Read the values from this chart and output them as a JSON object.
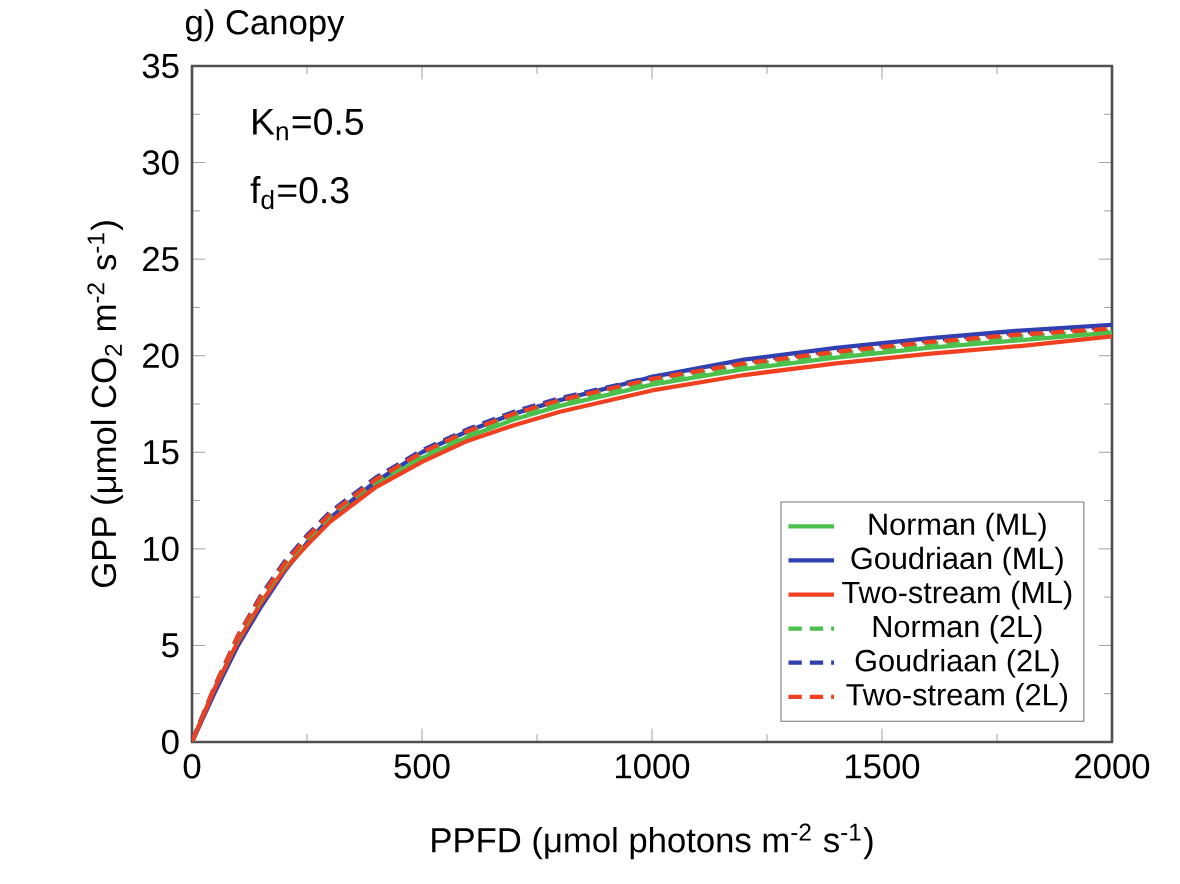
{
  "chart_data": {
    "type": "line",
    "title": "g) Canopy",
    "xlabel": "PPFD (μmol photons m$^{-2}$ s$^{-1}$)",
    "ylabel": "GPP (μmol CO$_{2}$ m$^{-2}$ s$^{-1}$)",
    "annotations": [
      "K$_{n}$=0.5",
      "f$_{d}$=0.3"
    ],
    "x": [
      0,
      50,
      100,
      150,
      200,
      250,
      300,
      400,
      500,
      600,
      700,
      800,
      1000,
      1200,
      1400,
      1600,
      1800,
      2000
    ],
    "series": [
      {
        "name": "Norman (ML)",
        "color": "#4cc04c",
        "line_style": "solid",
        "values": [
          0,
          2.8,
          5.2,
          7.2,
          8.9,
          10.3,
          11.5,
          13.3,
          14.7,
          15.8,
          16.7,
          17.4,
          18.5,
          19.3,
          19.9,
          20.4,
          20.8,
          21.2
        ]
      },
      {
        "name": "Goudriaan (ML)",
        "color": "#3040b0",
        "line_style": "solid",
        "values": [
          0,
          2.6,
          5.0,
          7.0,
          8.8,
          10.3,
          11.6,
          13.5,
          15.0,
          16.1,
          17.0,
          17.7,
          18.9,
          19.8,
          20.4,
          20.9,
          21.3,
          21.6
        ]
      },
      {
        "name": "Two-stream (ML)",
        "color": "#f04020",
        "line_style": "solid",
        "values": [
          0,
          2.8,
          5.2,
          7.2,
          8.9,
          10.2,
          11.4,
          13.2,
          14.5,
          15.6,
          16.4,
          17.1,
          18.2,
          19.0,
          19.6,
          20.1,
          20.5,
          21.0
        ]
      },
      {
        "name": "Norman (2L)",
        "color": "#4cc04c",
        "line_style": "dashed",
        "values": [
          0,
          2.9,
          5.4,
          7.4,
          9.1,
          10.5,
          11.7,
          13.5,
          14.9,
          16.0,
          16.9,
          17.6,
          18.7,
          19.5,
          20.1,
          20.6,
          21.0,
          21.3
        ]
      },
      {
        "name": "Goudriaan (2L)",
        "color": "#3040b0",
        "line_style": "dashed",
        "values": [
          0,
          2.9,
          5.5,
          7.6,
          9.3,
          10.7,
          11.9,
          13.7,
          15.1,
          16.2,
          17.1,
          17.8,
          18.9,
          19.7,
          20.3,
          20.8,
          21.2,
          21.5
        ]
      },
      {
        "name": "Two-stream (2L)",
        "color": "#f04020",
        "line_style": "dashed",
        "values": [
          0,
          2.9,
          5.5,
          7.5,
          9.2,
          10.6,
          11.8,
          13.6,
          15.0,
          16.1,
          17.0,
          17.7,
          18.8,
          19.6,
          20.2,
          20.7,
          21.1,
          21.4
        ]
      }
    ],
    "xlim": [
      0,
      2000
    ],
    "xticks": [
      0,
      500,
      1000,
      1500,
      2000
    ],
    "ylim": [
      0,
      35
    ],
    "yticks": [
      0,
      5,
      10,
      15,
      20,
      25,
      30,
      35
    ],
    "grid": false,
    "legend": "bottom right",
    "marker": "none"
  }
}
